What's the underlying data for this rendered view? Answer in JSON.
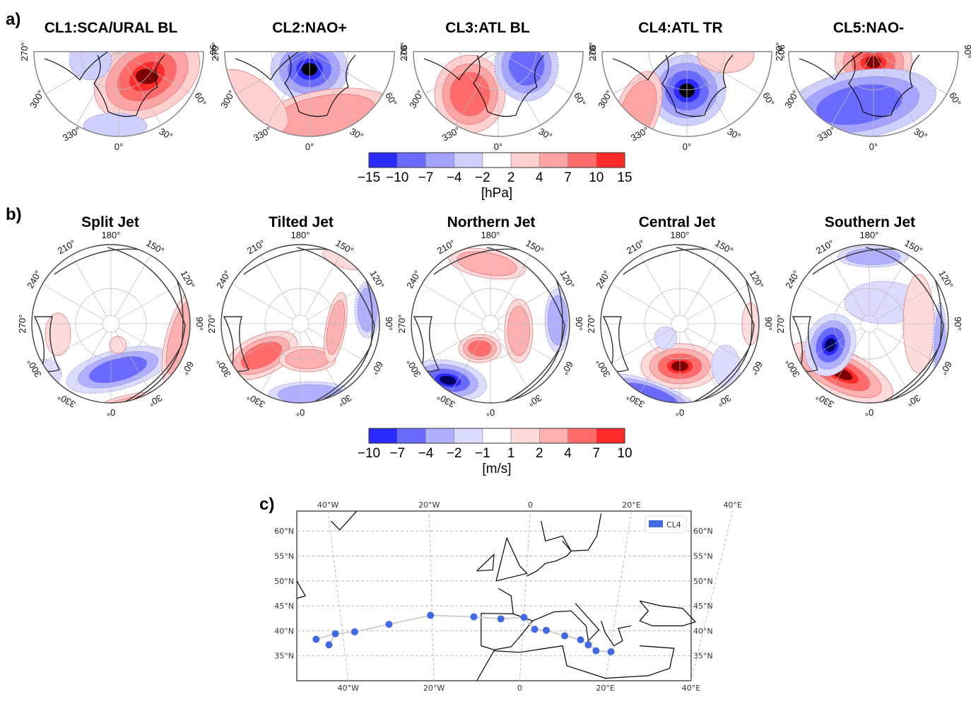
{
  "panel_labels": {
    "a": "a)",
    "b": "b)",
    "c": "c)"
  },
  "chart_data": [
    {
      "type": "heatmap",
      "panel": "a",
      "description": "Sea-level pressure anomaly composites of five weather regimes (polar stereographic, North Atlantic/Europe sector)",
      "titles": [
        "CL1:SCA/URAL BL",
        "CL2:NAO+",
        "CL3:ATL BL",
        "CL4:ATL TR",
        "CL5:NAO-"
      ],
      "longitude_labels": [
        "270°",
        "300°",
        "330°",
        "0°",
        "30°",
        "60°",
        "90°"
      ],
      "colorbar": {
        "unit": "[hPa]",
        "boundaries": [
          -15,
          -10,
          -7,
          -4,
          -2,
          2,
          4,
          7,
          10,
          15
        ],
        "tick_labels": [
          "−15",
          "−10",
          "−7",
          "−4",
          "−2",
          "2",
          "4",
          "7",
          "10",
          "15"
        ],
        "colors": [
          "#2b2bff",
          "#6a6aff",
          "#a4a4ff",
          "#d0d0ff",
          "#ffffff",
          "#ffd0d0",
          "#ffa4a4",
          "#ff6a6a",
          "#ff2b2b"
        ]
      },
      "regimes": [
        {
          "name": "CL1:SCA/URAL BL",
          "anomalies": [
            {
              "sign": "positive",
              "location": "Scandinavia",
              "peak_hpa": 15
            },
            {
              "sign": "negative",
              "location": "Greenland",
              "peak_hpa": -4
            },
            {
              "sign": "negative",
              "location": "Mediterranean",
              "peak_hpa": -4
            }
          ]
        },
        {
          "name": "CL2:NAO+",
          "anomalies": [
            {
              "sign": "negative",
              "location": "Iceland/Greenland",
              "peak_hpa": -15
            },
            {
              "sign": "positive",
              "location": "Azores/Europe",
              "peak_hpa": 7
            }
          ]
        },
        {
          "name": "CL3:ATL BL",
          "anomalies": [
            {
              "sign": "positive",
              "location": "Central North Atlantic",
              "peak_hpa": 10
            },
            {
              "sign": "negative",
              "location": "Scandinavia",
              "peak_hpa": -10
            }
          ]
        },
        {
          "name": "CL4:ATL TR",
          "anomalies": [
            {
              "sign": "negative",
              "location": "West of British Isles",
              "peak_hpa": -15
            },
            {
              "sign": "positive",
              "location": "Western Atlantic",
              "peak_hpa": 4
            },
            {
              "sign": "positive",
              "location": "Barents Sea",
              "peak_hpa": 4
            }
          ]
        },
        {
          "name": "CL5:NAO-",
          "anomalies": [
            {
              "sign": "positive",
              "location": "Greenland",
              "peak_hpa": 15
            },
            {
              "sign": "negative",
              "location": "Mid-latitude Atlantic/Europe",
              "peak_hpa": -10
            }
          ]
        }
      ]
    },
    {
      "type": "heatmap",
      "panel": "b",
      "description": "Zonal wind anomaly composites of jet regimes (full hemisphere polar stereographic) with climatological jet contours",
      "titles": [
        "Split Jet",
        "Tilted Jet",
        "Northern Jet",
        "Central Jet",
        "Southern Jet"
      ],
      "longitude_labels": [
        "180°",
        "150°",
        "120°",
        "90°",
        "60°",
        "30°",
        "0°",
        "330°",
        "300°",
        "270°",
        "240°",
        "210°"
      ],
      "colorbar": {
        "unit": "[m/s]",
        "boundaries": [
          -10,
          -7,
          -4,
          -2,
          -1,
          1,
          2,
          4,
          7,
          10
        ],
        "tick_labels": [
          "−10",
          "−7",
          "−4",
          "−2",
          "−1",
          "1",
          "2",
          "4",
          "7",
          "10"
        ],
        "colors": [
          "#2b2bff",
          "#6a6aff",
          "#b0b0ff",
          "#dcdcff",
          "#ffffff",
          "#ffdcdc",
          "#ffb0b0",
          "#ff6a6a",
          "#ff2b2b"
        ]
      },
      "regimes": [
        {
          "name": "Split Jet",
          "anomalies": [
            {
              "sign": "negative",
              "location": "North Atlantic/Europe",
              "peak_ms": -10
            },
            {
              "sign": "positive",
              "location": "North Pacific",
              "peak_ms": 4
            },
            {
              "sign": "positive",
              "location": "Subtropical Atlantic",
              "peak_ms": 7
            }
          ]
        },
        {
          "name": "Tilted Jet",
          "anomalies": [
            {
              "sign": "positive",
              "location": "North America to Scandinavia arc",
              "peak_ms": 10
            },
            {
              "sign": "negative",
              "location": "Mediterranean",
              "peak_ms": -7
            }
          ]
        },
        {
          "name": "Northern Jet",
          "anomalies": [
            {
              "sign": "negative",
              "location": "Subtropical Atlantic",
              "peak_ms": -10
            },
            {
              "sign": "positive",
              "location": "North Atlantic / Arctic hook",
              "peak_ms": 7
            },
            {
              "sign": "positive",
              "location": "North Pacific",
              "peak_ms": 4
            }
          ]
        },
        {
          "name": "Central Jet",
          "anomalies": [
            {
              "sign": "positive",
              "location": "Central North Atlantic",
              "peak_ms": 10
            },
            {
              "sign": "negative",
              "location": "Subtropical Atlantic",
              "peak_ms": -7
            }
          ]
        },
        {
          "name": "Southern Jet",
          "anomalies": [
            {
              "sign": "positive",
              "location": "Southern Atlantic/Mediterranean",
              "peak_ms": 10
            },
            {
              "sign": "negative",
              "location": "Greenland/Labrador",
              "peak_ms": -10
            }
          ]
        }
      ]
    },
    {
      "type": "scatter",
      "panel": "c",
      "description": "Track of CL4 regime centroid over North Atlantic and Mediterranean",
      "legend": [
        {
          "label": "CL4",
          "color": "#4169e1"
        }
      ],
      "legend_position": "top-right",
      "x_ticks_top": [
        "40°W",
        "20°W",
        "0",
        "20°E",
        "40°E"
      ],
      "x_ticks_bottom": [
        "40°W",
        "20°W",
        "0",
        "20°E",
        "40°E"
      ],
      "y_ticks": [
        "60°N",
        "55°N",
        "50°N",
        "45°N",
        "40°N",
        "35°N"
      ],
      "xlim": [
        -52,
        40
      ],
      "ylim": [
        30,
        64
      ],
      "grid": true,
      "track_color": "#d0d0d0",
      "points": [
        {
          "lon": -47.5,
          "lat": 38.3
        },
        {
          "lon": -43.0,
          "lat": 39.4
        },
        {
          "lon": -44.5,
          "lat": 37.2
        },
        {
          "lon": -38.5,
          "lat": 39.8
        },
        {
          "lon": -30.5,
          "lat": 41.3
        },
        {
          "lon": -20.8,
          "lat": 43.1
        },
        {
          "lon": -10.7,
          "lat": 42.8
        },
        {
          "lon": -4.4,
          "lat": 42.4
        },
        {
          "lon": 1.0,
          "lat": 42.7
        },
        {
          "lon": 3.5,
          "lat": 40.3
        },
        {
          "lon": 6.2,
          "lat": 40.1
        },
        {
          "lon": 10.5,
          "lat": 39.0
        },
        {
          "lon": 14.2,
          "lat": 38.2
        },
        {
          "lon": 16.0,
          "lat": 37.2
        },
        {
          "lon": 17.8,
          "lat": 36.0
        },
        {
          "lon": 21.3,
          "lat": 35.8
        }
      ],
      "track_order": [
        2,
        1,
        0,
        1,
        3,
        4,
        5,
        6,
        7,
        8,
        9,
        10,
        11,
        12,
        13,
        14,
        15
      ]
    }
  ]
}
